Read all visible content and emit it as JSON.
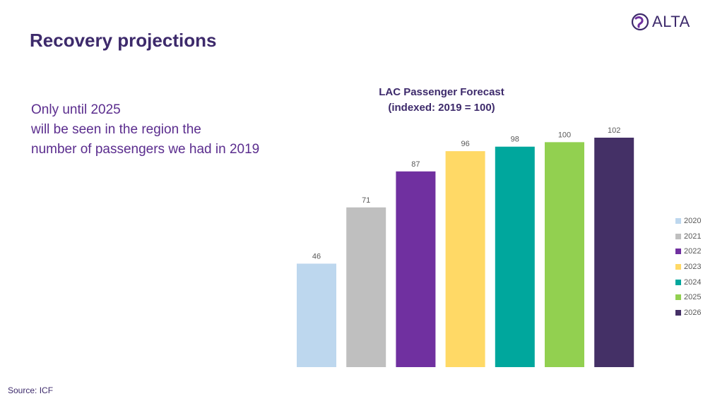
{
  "slide": {
    "title": "Recovery projections",
    "logo_text": "ALTA",
    "body_lines": [
      "Only until 2025",
      "will be seen in the region the",
      "number of passengers we had in 2019"
    ],
    "source": "Source: ICF"
  },
  "chart_data": {
    "type": "bar",
    "title_lines": [
      "LAC Passenger Forecast",
      "(indexed: 2019 = 100)"
    ],
    "categories": [
      "2020",
      "2021",
      "2022",
      "2023",
      "2024",
      "2025",
      "2026"
    ],
    "values": [
      46,
      71,
      87,
      96,
      98,
      100,
      102
    ],
    "colors": [
      "#bdd7ee",
      "#bfbfbf",
      "#7030a0",
      "#ffd966",
      "#00a79d",
      "#92d050",
      "#443066"
    ],
    "data_labels": [
      "46",
      "71",
      "87",
      "96",
      "98",
      "100",
      "102"
    ],
    "xlabel": "",
    "ylabel": "",
    "ylim": [
      0,
      102
    ],
    "grid": false,
    "axes_visible": false,
    "legend_position": "right",
    "legend": [
      "2020",
      "2021",
      "2022",
      "2023",
      "2024",
      "2025",
      "2026"
    ]
  },
  "colors": {
    "title": "#3d2a6b",
    "body_text": "#5b2d8e",
    "data_label": "#595959"
  }
}
